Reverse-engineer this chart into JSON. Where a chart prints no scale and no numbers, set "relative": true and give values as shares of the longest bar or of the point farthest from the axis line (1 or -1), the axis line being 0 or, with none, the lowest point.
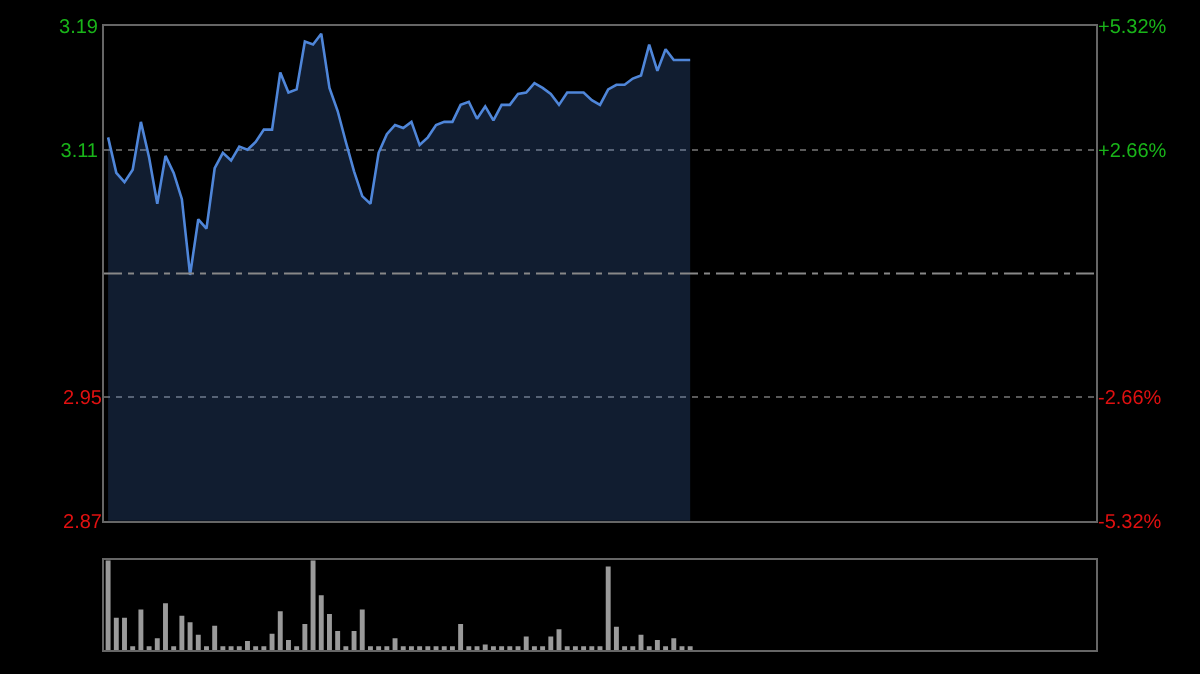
{
  "chart_data": [
    {
      "type": "area",
      "categories": [
        null,
        null,
        null,
        null,
        null,
        null,
        null,
        null,
        null,
        null,
        null,
        null,
        null,
        null,
        null,
        null,
        null,
        null,
        null,
        null,
        null,
        null,
        null,
        null,
        null,
        null,
        null,
        null,
        null,
        null,
        null,
        null,
        null,
        null,
        null,
        null,
        null,
        null,
        null,
        null,
        null,
        null,
        null,
        null,
        null,
        null,
        null,
        null,
        null,
        null,
        null,
        null,
        null,
        null,
        null,
        null,
        null,
        null,
        null,
        null,
        null,
        null,
        null,
        null,
        null,
        null,
        null,
        null,
        null,
        null,
        null,
        null,
        null,
        null,
        null,
        null,
        null,
        null,
        null,
        null,
        null,
        null,
        null,
        null,
        null,
        null,
        null,
        null,
        null,
        null,
        null,
        null,
        null,
        null,
        null,
        null,
        null,
        null,
        null,
        null,
        null,
        null,
        null,
        null,
        null,
        null,
        null,
        null,
        null,
        null,
        null,
        null,
        null,
        null,
        null,
        null,
        null,
        null,
        null,
        null,
        null
      ],
      "series": [
        {
          "color": "#4f86d9",
          "values": [
            3.118,
            3.095,
            3.089,
            3.097,
            3.128,
            3.105,
            3.075,
            3.106,
            3.095,
            3.078,
            3.029,
            3.065,
            3.059,
            3.098,
            3.108,
            3.103,
            3.112,
            3.11,
            3.115,
            3.123,
            3.123,
            3.16,
            3.147,
            3.149,
            3.18,
            3.178,
            3.185,
            3.15,
            3.135,
            3.115,
            3.096,
            3.08,
            3.075,
            3.108,
            3.12,
            3.126,
            3.124,
            3.128,
            3.113,
            3.118,
            3.126,
            3.128,
            3.128,
            3.139,
            3.141,
            3.13,
            3.138,
            3.129,
            3.139,
            3.139,
            3.146,
            3.147,
            3.153,
            3.15,
            3.146,
            3.139,
            3.147,
            3.147,
            3.147,
            3.142,
            3.139,
            3.149,
            3.152,
            3.152,
            3.156,
            3.158,
            3.178,
            3.161,
            3.175,
            3.168,
            3.168,
            3.168,
            null,
            null,
            null,
            null,
            null,
            null,
            null,
            null,
            null,
            null,
            null,
            null,
            null,
            null,
            null,
            null,
            null,
            null,
            null,
            null,
            null,
            null,
            null,
            null,
            null,
            null,
            null,
            null,
            null,
            null,
            null,
            null,
            null,
            null,
            null,
            null,
            null,
            null,
            null,
            null,
            null,
            null,
            null,
            null,
            null,
            null,
            null,
            null,
            null
          ]
        }
      ],
      "ylim": [
        2.87,
        3.19
      ],
      "yticks": [
        2.87,
        2.95,
        3.11,
        3.19
      ],
      "y2lim": [
        -5.32,
        5.32
      ],
      "y2ticks": [
        {
          "value": 5.32,
          "label": "+5.32%"
        },
        {
          "value": 2.66,
          "label": "+2.66%"
        },
        {
          "value": -2.66,
          "label": "-2.66%"
        },
        {
          "value": -5.32,
          "label": "-5.32%"
        }
      ],
      "ref_lines": [
        {
          "axis": "y",
          "value": 3.03,
          "color": "#888888",
          "line_style": "dashdot"
        }
      ],
      "grid": "y",
      "marker": "none",
      "line_style": "solid",
      "tick_labels": "y"
    },
    {
      "type": "bar",
      "relative": true,
      "categories": [
        null,
        null,
        null,
        null,
        null,
        null,
        null,
        null,
        null,
        null,
        null,
        null,
        null,
        null,
        null,
        null,
        null,
        null,
        null,
        null,
        null,
        null,
        null,
        null,
        null,
        null,
        null,
        null,
        null,
        null,
        null,
        null,
        null,
        null,
        null,
        null,
        null,
        null,
        null,
        null,
        null,
        null,
        null,
        null,
        null,
        null,
        null,
        null,
        null,
        null,
        null,
        null,
        null,
        null,
        null,
        null,
        null,
        null,
        null,
        null,
        null,
        null,
        null,
        null,
        null,
        null,
        null,
        null,
        null,
        null,
        null,
        null,
        null,
        null,
        null,
        null,
        null,
        null,
        null,
        null,
        null,
        null,
        null,
        null,
        null,
        null,
        null,
        null,
        null,
        null,
        null,
        null,
        null,
        null,
        null,
        null,
        null,
        null,
        null,
        null,
        null,
        null,
        null,
        null,
        null,
        null,
        null,
        null,
        null,
        null,
        null,
        null,
        null,
        null,
        null,
        null,
        null,
        null,
        null,
        null,
        null
      ],
      "series": [
        {
          "color": "#9a9a9a",
          "values": [
            1.0,
            0.36,
            0.36,
            0.03,
            0.45,
            0.03,
            0.13,
            0.52,
            0.03,
            0.38,
            0.31,
            0.17,
            0.03,
            0.27,
            0.03,
            0.03,
            0.03,
            0.1,
            0.03,
            0.03,
            0.18,
            0.43,
            0.11,
            0.03,
            0.29,
            1.0,
            0.61,
            0.4,
            0.21,
            0.03,
            0.21,
            0.45,
            0.03,
            0.03,
            0.03,
            0.13,
            0.03,
            0.03,
            0.03,
            0.03,
            0.03,
            0.03,
            0.03,
            0.29,
            0.03,
            0.03,
            0.06,
            0.03,
            0.03,
            0.03,
            0.03,
            0.15,
            0.03,
            0.03,
            0.15,
            0.23,
            0.03,
            0.03,
            0.03,
            0.03,
            0.03,
            0.93,
            0.26,
            0.03,
            0.03,
            0.17,
            0.03,
            0.11,
            0.03,
            0.13,
            0.03,
            0.03,
            null,
            null,
            null,
            null,
            null,
            null,
            null,
            null,
            null,
            null,
            null,
            null,
            null,
            null,
            null,
            null,
            null,
            null,
            null,
            null,
            null,
            null,
            null,
            null,
            null,
            null,
            null,
            null,
            null,
            null,
            null,
            null,
            null,
            null,
            null,
            null,
            null,
            null,
            null,
            null,
            null,
            null,
            null,
            null,
            null,
            null,
            null,
            null,
            null
          ]
        }
      ],
      "tick_labels": false,
      "grid": false
    }
  ]
}
